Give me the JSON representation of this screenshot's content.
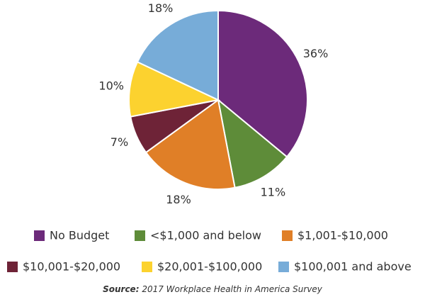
{
  "chart_data": {
    "type": "pie",
    "categories": [
      "No Budget",
      "<$1,000 and below",
      "$1,001-$10,000",
      "$10,001-$20,000",
      "$20,001-$100,000",
      "$100,001 and above"
    ],
    "values": [
      36,
      11,
      18,
      7,
      10,
      18
    ],
    "value_labels": [
      "36%",
      "11%",
      "18%",
      "7%",
      "10%",
      "18%"
    ],
    "colors": [
      "#6c2a7a",
      "#5e8c39",
      "#e07f27",
      "#6e2337",
      "#fcd22f",
      "#77acd8"
    ],
    "source_label": "Source:",
    "source": "2017 Workplace Health in America Survey"
  }
}
